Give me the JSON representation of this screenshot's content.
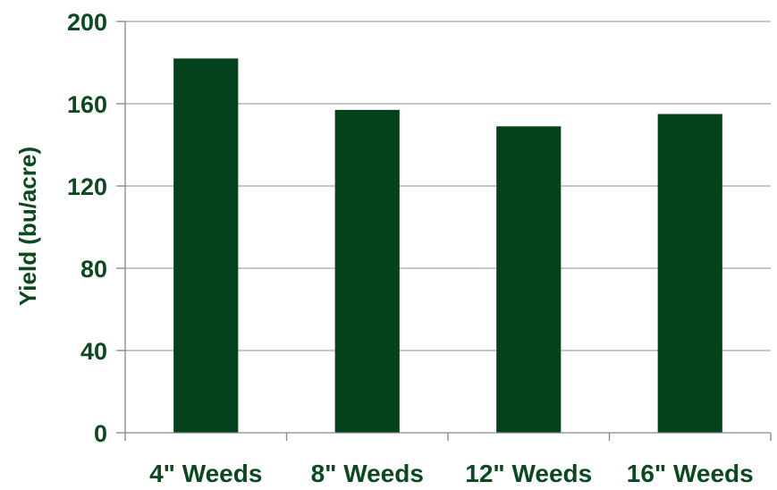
{
  "chart_data": {
    "type": "bar",
    "categories": [
      "4\" Weeds",
      "8\" Weeds",
      "12\" Weeds",
      "16\" Weeds"
    ],
    "values": [
      182,
      157,
      149,
      155
    ],
    "title": "",
    "xlabel": "",
    "ylabel": "Yield (bu/acre)",
    "ylim": [
      0,
      200
    ],
    "yticks": [
      0,
      40,
      80,
      120,
      160,
      200
    ],
    "grid": true,
    "legend": "none",
    "colors": {
      "bar": "#04421b",
      "text": "#0b4a21",
      "grid": "#a6a6a6",
      "axis": "#868686"
    }
  }
}
